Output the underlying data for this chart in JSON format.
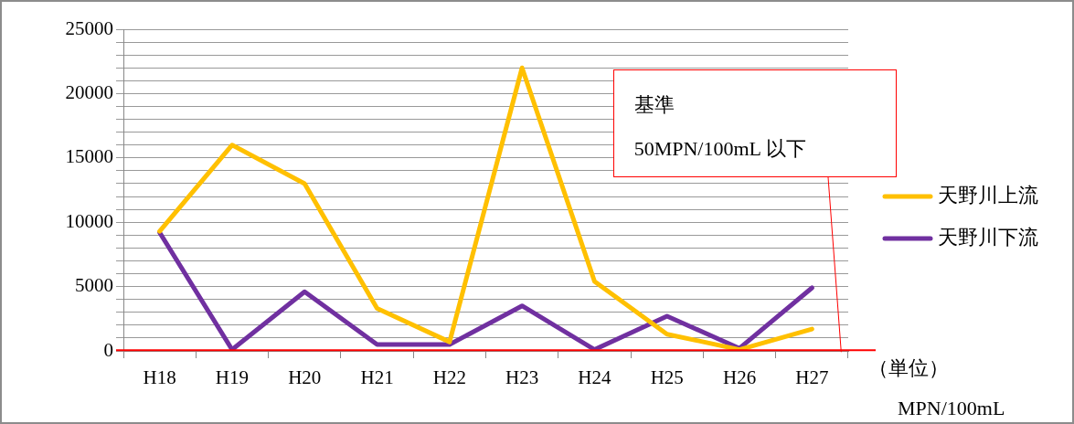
{
  "chart_data": {
    "type": "line",
    "categories": [
      "H18",
      "H19",
      "H20",
      "H21",
      "H22",
      "H23",
      "H24",
      "H25",
      "H26",
      "H27"
    ],
    "series": [
      {
        "name": "天野川上流",
        "color": "#ffc000",
        "values": [
          9300,
          16000,
          13000,
          3300,
          700,
          22000,
          5400,
          1300,
          100,
          1700
        ]
      },
      {
        "name": "天野川下流",
        "color": "#7030a0",
        "values": [
          9200,
          100,
          4600,
          500,
          500,
          3500,
          100,
          2700,
          200,
          4900
        ]
      }
    ],
    "ylim": [
      0,
      25000
    ],
    "yticks": [
      0,
      {
        "value": 1000,
        "label": null
      },
      {
        "value": 2000,
        "label": null
      },
      {
        "value": 3000,
        "label": null
      },
      {
        "value": 4000,
        "label": null
      },
      5000,
      {
        "value": 6000,
        "label": null
      },
      {
        "value": 7000,
        "label": null
      },
      {
        "value": 8000,
        "label": null
      },
      {
        "value": 9000,
        "label": null
      },
      10000,
      {
        "value": 11000,
        "label": null
      },
      {
        "value": 12000,
        "label": null
      },
      {
        "value": 13000,
        "label": null
      },
      {
        "value": 14000,
        "label": null
      },
      15000,
      {
        "value": 16000,
        "label": null
      },
      {
        "value": 17000,
        "label": null
      },
      {
        "value": 18000,
        "label": null
      },
      {
        "value": 19000,
        "label": null
      },
      20000,
      {
        "value": 21000,
        "label": null
      },
      {
        "value": 22000,
        "label": null
      },
      {
        "value": 23000,
        "label": null
      },
      {
        "value": 24000,
        "label": null
      },
      25000
    ],
    "grid": "y",
    "legend": "right",
    "marker": "none",
    "line_style": "solid",
    "ref_lines": [
      {
        "axis": "y",
        "value": 50,
        "color": "#ff0000"
      }
    ],
    "annotations": [
      "基準\n50MPN/100mL 以下",
      "（単位）",
      "MPN/100mL"
    ]
  }
}
